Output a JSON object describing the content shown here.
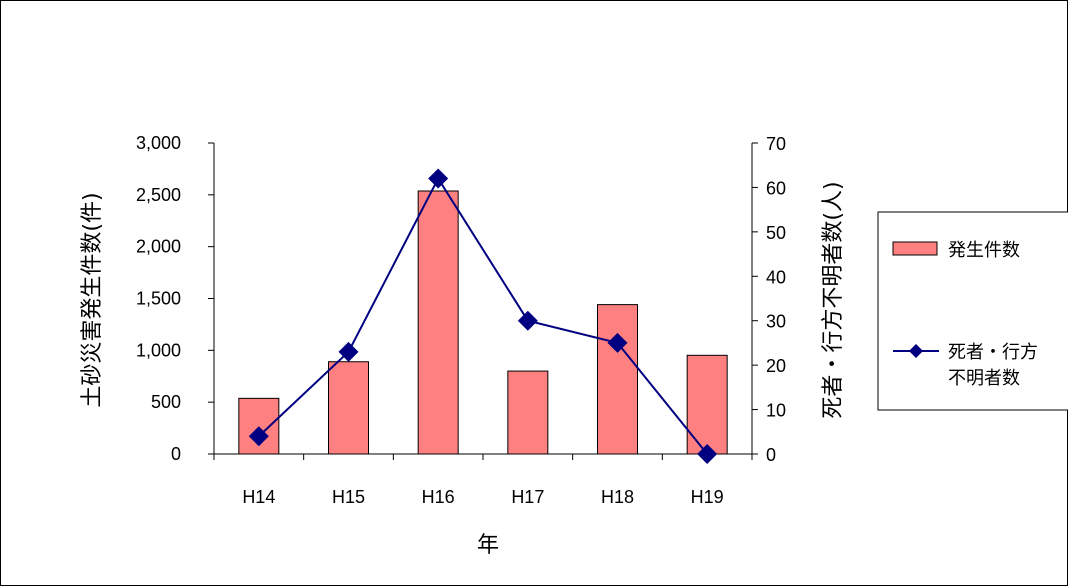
{
  "chart_data": {
    "type": "bar",
    "categories": [
      "H14",
      "H15",
      "H16",
      "H17",
      "H18",
      "H19"
    ],
    "xlabel": "年",
    "ylabel": "土砂災害発生件数(件)",
    "y2label": "死者・行方不明者数(人)",
    "ylim": [
      0,
      3000
    ],
    "y2lim": [
      0,
      70
    ],
    "yticks": [
      "0",
      "500",
      "1,000",
      "1,500",
      "2,000",
      "2,500",
      "3,000"
    ],
    "y2ticks": [
      "0",
      "10",
      "20",
      "30",
      "40",
      "50",
      "60",
      "70"
    ],
    "grid": false,
    "legend_position": "right",
    "series": [
      {
        "name": "発生件数",
        "type": "bar",
        "axis": "left",
        "color": "#ff8080",
        "values": [
          537,
          890,
          2537,
          800,
          1441,
          952
        ]
      },
      {
        "name": "死者・行方不明者数",
        "name_lines": [
          "死者・行方",
          "不明者数"
        ],
        "type": "line",
        "axis": "right",
        "color": "#000080",
        "values": [
          4,
          23,
          62,
          30,
          25,
          0
        ]
      }
    ]
  }
}
